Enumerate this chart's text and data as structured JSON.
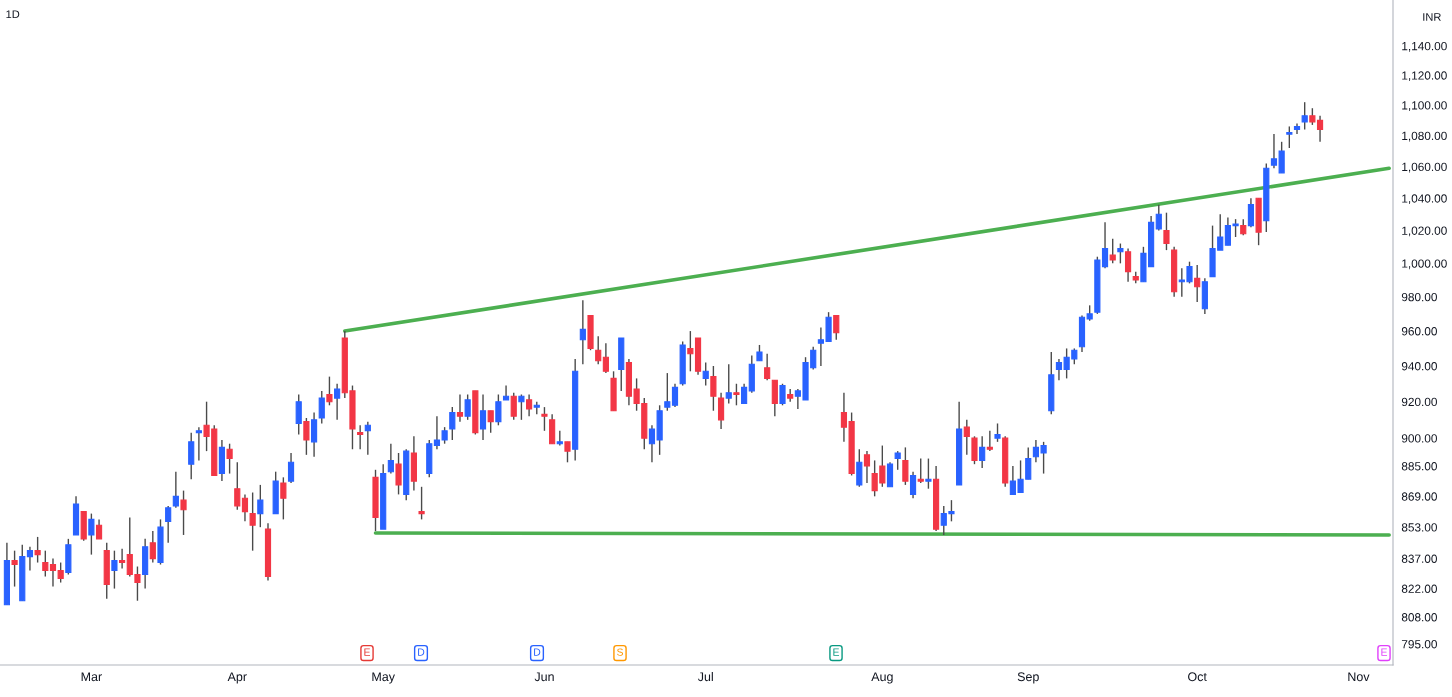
{
  "chart_data": {
    "type": "candlestick",
    "title": "1D",
    "ylabel": "INR",
    "log": true,
    "colors": [
      "#2962ff",
      "#f23645",
      "#2962ff",
      "#2962ff",
      "#f23645",
      "#f23645",
      "#f23645",
      "#f23645",
      "#2962ff",
      "#2962ff",
      "#f23645",
      "#2962ff",
      "#f23645",
      "#f23645",
      "#2962ff",
      "#f23645",
      "#f23645",
      "#f23645",
      "#2962ff",
      "#f23645",
      "#2962ff",
      "#2962ff",
      "#2962ff",
      "#f23645",
      "#2962ff",
      "#2962ff",
      "#f23645",
      "#f23645",
      "#2962ff",
      "#f23645",
      "#f23645",
      "#f23645",
      "#f23645",
      "#2962ff",
      "#f23645",
      "#2962ff",
      "#f23645",
      "#2962ff",
      "#2962ff",
      "#f23645",
      "#2962ff",
      "#2962ff",
      "#f23645",
      "#2962ff",
      "#f23645",
      "#f23645",
      "#f23645",
      "#2962ff",
      "#f23645",
      "#2962ff",
      "#2962ff",
      "#f23645",
      "#2962ff",
      "#f23645",
      "#f23645",
      "#2962ff",
      "#2962ff",
      "#2962ff",
      "#2962ff",
      "#f23645",
      "#2962ff",
      "#f23645",
      "#2962ff",
      "#f23645",
      "#2962ff",
      "#2962ff",
      "#f23645",
      "#2962ff",
      "#f23645",
      "#2962ff",
      "#f23645",
      "#f23645",
      "#2962ff",
      "#f23645",
      "#2962ff",
      "#2962ff",
      "#f23645",
      "#f23645",
      "#f23645",
      "#f23645",
      "#2962ff",
      "#f23645",
      "#f23645",
      "#f23645",
      "#2962ff",
      "#2962ff",
      "#2962ff",
      "#2962ff",
      "#2962ff",
      "#f23645",
      "#f23645",
      "#2962ff",
      "#f23645",
      "#f23645",
      "#2962ff",
      "#f23645",
      "#2962ff",
      "#2962ff",
      "#2962ff",
      "#f23645",
      "#f23645",
      "#2962ff",
      "#f23645",
      "#2962ff",
      "#2962ff",
      "#2962ff",
      "#2962ff",
      "#2962ff",
      "#f23645",
      "#f23645",
      "#f23645",
      "#2962ff",
      "#f23645",
      "#f23645",
      "#f23645",
      "#2962ff",
      "#2962ff",
      "#f23645",
      "#2962ff",
      "#f23645",
      "#2962ff",
      "#f23645",
      "#2962ff",
      "#2962ff",
      "#2962ff",
      "#f23645",
      "#f23645",
      "#2962ff",
      "#f23645",
      "#2962ff",
      "#f23645",
      "#2962ff",
      "#2962ff",
      "#2962ff",
      "#2962ff",
      "#2962ff",
      "#2962ff",
      "#2962ff",
      "#2962ff",
      "#2962ff",
      "#2962ff",
      "#2962ff",
      "#2962ff",
      "#2962ff",
      "#f23645",
      "#2962ff",
      "#f23645",
      "#f23645",
      "#2962ff",
      "#2962ff",
      "#2962ff",
      "#f23645",
      "#f23645",
      "#2962ff",
      "#2962ff",
      "#f23645",
      "#2962ff",
      "#2962ff",
      "#2962ff",
      "#2962ff",
      "#2962ff",
      "#f23645",
      "#2962ff",
      "#f23645",
      "#2962ff",
      "#2962ff",
      "#2962ff",
      "#2962ff",
      "#2962ff",
      "#2962ff",
      "#f23645",
      "#f23645",
      null,
      null,
      null,
      null,
      null,
      null,
      null,
      null,
      null
    ],
    "categories": [
      null,
      null,
      null,
      null,
      null,
      null,
      null,
      null,
      null,
      null,
      null,
      "Mar",
      null,
      null,
      null,
      null,
      null,
      null,
      null,
      null,
      null,
      null,
      null,
      null,
      null,
      null,
      null,
      null,
      null,
      null,
      "Apr",
      null,
      null,
      null,
      null,
      null,
      null,
      null,
      null,
      null,
      null,
      null,
      null,
      null,
      null,
      null,
      null,
      null,
      null,
      "May",
      null,
      null,
      null,
      null,
      null,
      null,
      null,
      null,
      null,
      null,
      null,
      null,
      null,
      null,
      null,
      null,
      null,
      null,
      null,
      null,
      "Jun",
      null,
      null,
      null,
      null,
      null,
      null,
      null,
      null,
      null,
      null,
      null,
      null,
      null,
      null,
      null,
      null,
      null,
      null,
      null,
      null,
      "Jul",
      null,
      null,
      null,
      null,
      null,
      null,
      null,
      null,
      null,
      null,
      null,
      null,
      null,
      null,
      null,
      null,
      null,
      null,
      null,
      null,
      null,
      null,
      "Aug",
      null,
      null,
      null,
      null,
      null,
      null,
      null,
      null,
      null,
      null,
      null,
      null,
      null,
      null,
      null,
      null,
      null,
      null,
      "Sep",
      null,
      null,
      null,
      null,
      null,
      null,
      null,
      null,
      null,
      null,
      null,
      null,
      null,
      null,
      null,
      null,
      null,
      null,
      null,
      null,
      null,
      "Oct",
      null,
      null,
      null,
      null,
      null,
      null,
      null,
      null,
      null,
      null,
      null,
      null,
      null,
      null,
      null,
      null,
      null,
      null,
      null,
      null,
      "Nov",
      null,
      null,
      null,
      null
    ],
    "ohlc": [
      [
        814,
        845,
        814,
        836
      ],
      [
        836,
        841,
        823,
        834
      ],
      [
        816,
        844,
        816,
        838
      ],
      [
        838,
        843,
        831,
        841
      ],
      [
        841,
        848,
        835,
        839
      ],
      [
        835,
        841,
        828,
        831
      ],
      [
        834,
        837,
        823,
        831
      ],
      [
        831,
        835,
        825,
        827
      ],
      [
        830,
        847,
        829,
        844
      ],
      [
        849,
        869,
        849,
        865
      ],
      [
        861,
        861,
        846,
        847
      ],
      [
        849,
        860,
        839,
        857
      ],
      [
        854,
        857,
        847,
        847
      ],
      [
        841,
        845,
        817,
        824
      ],
      [
        831,
        841,
        822,
        836
      ],
      [
        836,
        842,
        832,
        835
      ],
      [
        839,
        858,
        828,
        829
      ],
      [
        829,
        833,
        816,
        825
      ],
      [
        829,
        847,
        822,
        843
      ],
      [
        845,
        851,
        835,
        837
      ],
      [
        835,
        857,
        834,
        853
      ],
      [
        856,
        864,
        845,
        863
      ],
      [
        864,
        882,
        863,
        869
      ],
      [
        867,
        872,
        849,
        862
      ],
      [
        886,
        903,
        878,
        898
      ],
      [
        903,
        906,
        888,
        904
      ],
      [
        907,
        920,
        893,
        901
      ],
      [
        905,
        907,
        880,
        880
      ],
      [
        881,
        899,
        877,
        895
      ],
      [
        894,
        897,
        881,
        889
      ],
      [
        873,
        887,
        862,
        864
      ],
      [
        868,
        870,
        856,
        861
      ],
      [
        860,
        871,
        841,
        854
      ],
      [
        860,
        875,
        853,
        867
      ],
      [
        852,
        855,
        826,
        828
      ],
      [
        860,
        882,
        860,
        877
      ],
      [
        876,
        879,
        857,
        868
      ],
      [
        877,
        892,
        876,
        887
      ],
      [
        908,
        924,
        902,
        920
      ],
      [
        909,
        911,
        891,
        899
      ],
      [
        898,
        914,
        890,
        910
      ],
      [
        911,
        926,
        908,
        922
      ],
      [
        924,
        934,
        918,
        920
      ],
      [
        922,
        930,
        910,
        927
      ],
      [
        956,
        960,
        922,
        925
      ],
      [
        926,
        929,
        894,
        905
      ],
      [
        903,
        907,
        894,
        902
      ],
      [
        904,
        909,
        891,
        907
      ],
      [
        879,
        883,
        851,
        858
      ],
      [
        852,
        886,
        852,
        881
      ],
      [
        882,
        897,
        881,
        888
      ],
      [
        886,
        892,
        870,
        875
      ],
      [
        870,
        894,
        867,
        893
      ],
      [
        892,
        901,
        872,
        877
      ],
      [
        861,
        874,
        857,
        860
      ],
      [
        881,
        899,
        879,
        897
      ],
      [
        896,
        912,
        894,
        899
      ],
      [
        899,
        906,
        897,
        904
      ],
      [
        905,
        917,
        899,
        914
      ],
      [
        914,
        924,
        909,
        912
      ],
      [
        912,
        924,
        910,
        921
      ],
      [
        926,
        926,
        902,
        903
      ],
      [
        905,
        924,
        899,
        915
      ],
      [
        915,
        915,
        903,
        909
      ],
      [
        909,
        924,
        907,
        920
      ],
      [
        921,
        929,
        921,
        923
      ],
      [
        923,
        925,
        910,
        912
      ],
      [
        920,
        924,
        910,
        923
      ],
      [
        921,
        924,
        912,
        916
      ],
      [
        917,
        920,
        913,
        918
      ],
      [
        913,
        917,
        904,
        912
      ],
      [
        910,
        913,
        897,
        897
      ],
      [
        897,
        904,
        896,
        898
      ],
      [
        898,
        898,
        887,
        893
      ],
      [
        894,
        944,
        888,
        937
      ],
      [
        955,
        978,
        941,
        961
      ],
      [
        969,
        969,
        949,
        950
      ],
      [
        949,
        957,
        941,
        943
      ],
      [
        945,
        953,
        936,
        937
      ],
      [
        933,
        937,
        915,
        915
      ],
      [
        938,
        956,
        926,
        956
      ],
      [
        942,
        944,
        918,
        923
      ],
      [
        927,
        933,
        915,
        919
      ],
      [
        919,
        922,
        894,
        900
      ],
      [
        897,
        907,
        887,
        905
      ],
      [
        899,
        918,
        891,
        915
      ],
      [
        917,
        936,
        915,
        920
      ],
      [
        918,
        930,
        917,
        928
      ],
      [
        930,
        954,
        929,
        952
      ],
      [
        950,
        960,
        937,
        947
      ],
      [
        956,
        956,
        935,
        937
      ],
      [
        933,
        942,
        929,
        937
      ],
      [
        934,
        940,
        915,
        923
      ],
      [
        922,
        925,
        905,
        910
      ],
      [
        922,
        941,
        919,
        925
      ],
      [
        925,
        930,
        918,
        924
      ],
      [
        919,
        930,
        919,
        928
      ],
      [
        926,
        946,
        925,
        941
      ],
      [
        943,
        952,
        943,
        948
      ],
      [
        939,
        947,
        932,
        933
      ],
      [
        932,
        932,
        912,
        919
      ],
      [
        919,
        930,
        918,
        929
      ],
      [
        924,
        927,
        920,
        922
      ],
      [
        923,
        927,
        916,
        926
      ],
      [
        921,
        945,
        921,
        942
      ],
      [
        939,
        951,
        938,
        949
      ],
      [
        953,
        962,
        940,
        955
      ],
      [
        954,
        971,
        954,
        968
      ],
      [
        969,
        969,
        955,
        959
      ],
      [
        914,
        925,
        898,
        906
      ],
      [
        909,
        914,
        880,
        881
      ],
      [
        875,
        894,
        874,
        887
      ],
      [
        891,
        893,
        876,
        885
      ],
      [
        881,
        888,
        869,
        872
      ],
      [
        885,
        896,
        874,
        876
      ],
      [
        874,
        887,
        874,
        886
      ],
      [
        889,
        893,
        883,
        892
      ],
      [
        888,
        895,
        875,
        877
      ],
      [
        870,
        882,
        868,
        880
      ],
      [
        878,
        889,
        876,
        877
      ],
      [
        877,
        889,
        873,
        878
      ],
      [
        878,
        885,
        851,
        852
      ],
      [
        854,
        864,
        849,
        860
      ],
      [
        860,
        867,
        856,
        861
      ],
      [
        875,
        920,
        875,
        905
      ],
      [
        906,
        910,
        891,
        901
      ],
      [
        900,
        901,
        886,
        888
      ],
      [
        888,
        901,
        884,
        895
      ],
      [
        895,
        904,
        893,
        894
      ],
      [
        900,
        908,
        898,
        902
      ],
      [
        900,
        901,
        874,
        876
      ],
      [
        870,
        885,
        870,
        877
      ],
      [
        871,
        888,
        871,
        878
      ],
      [
        878,
        895,
        878,
        889
      ],
      [
        890,
        899,
        887,
        895
      ],
      [
        892,
        898,
        881,
        896
      ],
      [
        915,
        948,
        913,
        935
      ],
      [
        938,
        944,
        932,
        942
      ],
      [
        938,
        950,
        933,
        945
      ],
      [
        944,
        950,
        941,
        949
      ],
      [
        951,
        969,
        948,
        968
      ],
      [
        967,
        975,
        966,
        970
      ],
      [
        971,
        1004,
        970,
        1002
      ],
      [
        998,
        1025,
        997,
        1009
      ],
      [
        1005,
        1015,
        1000,
        1002
      ],
      [
        1007,
        1012,
        1000,
        1009
      ],
      [
        1007,
        1009,
        989,
        995
      ],
      [
        992,
        995,
        988,
        990
      ],
      [
        989,
        1010,
        989,
        1006
      ],
      [
        998,
        1029,
        998,
        1025
      ],
      [
        1021,
        1036,
        1020,
        1030
      ],
      [
        1020,
        1031,
        1008,
        1012
      ],
      [
        1008,
        1010,
        980,
        983
      ],
      [
        989,
        997,
        980,
        990
      ],
      [
        989,
        1001,
        988,
        998
      ],
      [
        991,
        999,
        977,
        986
      ],
      [
        973,
        991,
        970,
        989
      ],
      [
        992,
        1023,
        992,
        1009
      ],
      [
        1008,
        1030,
        1008,
        1016
      ],
      [
        1011,
        1028,
        1011,
        1023
      ],
      [
        1023,
        1027,
        1016,
        1024
      ],
      [
        1023,
        1027,
        1017,
        1018
      ],
      [
        1023,
        1040,
        1022,
        1036
      ],
      [
        1040,
        1040,
        1011,
        1019
      ],
      [
        1026,
        1062,
        1019,
        1059
      ],
      [
        1061,
        1081,
        1059,
        1065
      ],
      [
        1056,
        1076,
        1056,
        1070
      ],
      [
        1081,
        1086,
        1072,
        1082
      ],
      [
        1084,
        1088,
        1081,
        1086
      ],
      [
        1089,
        1102,
        1084,
        1093
      ],
      [
        1093,
        1098,
        1087,
        1089
      ],
      [
        1090,
        1093,
        1076,
        1084
      ],
      null,
      null,
      null,
      null,
      null,
      null,
      null,
      null,
      null
    ],
    "series": [
      {
        "type": "line",
        "color": "#4caf50",
        "values": [
          null,
          null,
          null,
          null,
          null,
          null,
          null,
          null,
          null,
          null,
          null,
          null,
          null,
          null,
          null,
          null,
          null,
          null,
          null,
          null,
          null,
          null,
          null,
          null,
          null,
          null,
          null,
          null,
          null,
          null,
          null,
          null,
          null,
          null,
          null,
          null,
          null,
          null,
          null,
          null,
          null,
          null,
          null,
          null,
          960,
          null,
          null,
          null,
          null,
          null,
          null,
          null,
          null,
          null,
          null,
          null,
          null,
          null,
          null,
          null,
          null,
          null,
          null,
          null,
          null,
          null,
          null,
          null,
          null,
          null,
          null,
          null,
          null,
          null,
          null,
          null,
          null,
          null,
          null,
          null,
          null,
          null,
          null,
          null,
          null,
          null,
          null,
          null,
          null,
          null,
          null,
          null,
          null,
          null,
          null,
          null,
          null,
          null,
          null,
          null,
          null,
          null,
          null,
          null,
          null,
          null,
          null,
          null,
          null,
          null,
          null,
          null,
          null,
          null,
          null,
          null,
          null,
          null,
          null,
          null,
          null,
          null,
          null,
          null,
          null,
          null,
          null,
          null,
          null,
          null,
          null,
          null,
          null,
          null,
          null,
          null,
          null,
          null,
          null,
          null,
          null,
          null,
          null,
          null,
          null,
          null,
          null,
          null,
          null,
          null,
          null,
          null,
          null,
          null,
          null,
          null,
          null,
          null,
          null,
          null,
          null,
          null,
          null,
          null,
          null,
          null,
          null,
          null,
          null,
          null,
          null,
          null,
          null,
          null,
          null,
          null,
          null,
          null,
          null,
          null,
          1059
        ]
      },
      {
        "type": "line",
        "color": "#4caf50",
        "values": [
          null,
          null,
          null,
          null,
          null,
          null,
          null,
          null,
          null,
          null,
          null,
          null,
          null,
          null,
          null,
          null,
          null,
          null,
          null,
          null,
          null,
          null,
          null,
          null,
          null,
          null,
          null,
          null,
          null,
          null,
          null,
          null,
          null,
          null,
          null,
          null,
          null,
          null,
          null,
          null,
          null,
          null,
          null,
          null,
          null,
          null,
          null,
          null,
          850,
          null,
          null,
          null,
          null,
          null,
          null,
          null,
          null,
          null,
          null,
          null,
          null,
          null,
          null,
          null,
          null,
          null,
          null,
          null,
          null,
          null,
          null,
          null,
          null,
          null,
          null,
          null,
          null,
          null,
          null,
          null,
          null,
          null,
          null,
          null,
          null,
          null,
          null,
          null,
          null,
          null,
          null,
          null,
          null,
          null,
          null,
          null,
          null,
          null,
          null,
          null,
          null,
          null,
          null,
          null,
          null,
          null,
          null,
          null,
          null,
          null,
          null,
          null,
          null,
          null,
          null,
          null,
          null,
          null,
          null,
          null,
          null,
          null,
          null,
          null,
          null,
          null,
          null,
          null,
          null,
          null,
          null,
          null,
          null,
          null,
          null,
          null,
          null,
          null,
          null,
          null,
          null,
          null,
          null,
          null,
          null,
          null,
          null,
          null,
          null,
          null,
          null,
          null,
          null,
          null,
          null,
          null,
          null,
          null,
          null,
          null,
          null,
          null,
          null,
          null,
          null,
          null,
          null,
          null,
          null,
          null,
          null,
          null,
          null,
          null,
          null,
          null,
          null,
          null,
          null,
          null,
          849
        ]
      }
    ],
    "ylim": [
      785,
      1172
    ],
    "yticks": [
      {
        "value": 795,
        "label": "795.00"
      },
      {
        "value": 808,
        "label": "808.00"
      },
      {
        "value": 822,
        "label": "822.00"
      },
      {
        "value": 837,
        "label": "837.00"
      },
      {
        "value": 853,
        "label": "853.00"
      },
      {
        "value": 869,
        "label": "869.00"
      },
      {
        "value": 885,
        "label": "885.00"
      },
      {
        "value": 900,
        "label": "900.00"
      },
      {
        "value": 920,
        "label": "920.00"
      },
      {
        "value": 940,
        "label": "940.00"
      },
      {
        "value": 960,
        "label": "960.00"
      },
      {
        "value": 980,
        "label": "980.00"
      },
      {
        "value": 1000,
        "label": "1,000.00"
      },
      {
        "value": 1020,
        "label": "1,020.00"
      },
      {
        "value": 1040,
        "label": "1,040.00"
      },
      {
        "value": 1060,
        "label": "1,060.00"
      },
      {
        "value": 1080,
        "label": "1,080.00"
      },
      {
        "value": 1100,
        "label": "1,100.00"
      },
      {
        "value": 1120,
        "label": "1,120.00"
      },
      {
        "value": 1140,
        "label": "1,140.00"
      }
    ],
    "annotations": [
      "E",
      "D",
      "D",
      "S",
      "E",
      "E"
    ]
  }
}
